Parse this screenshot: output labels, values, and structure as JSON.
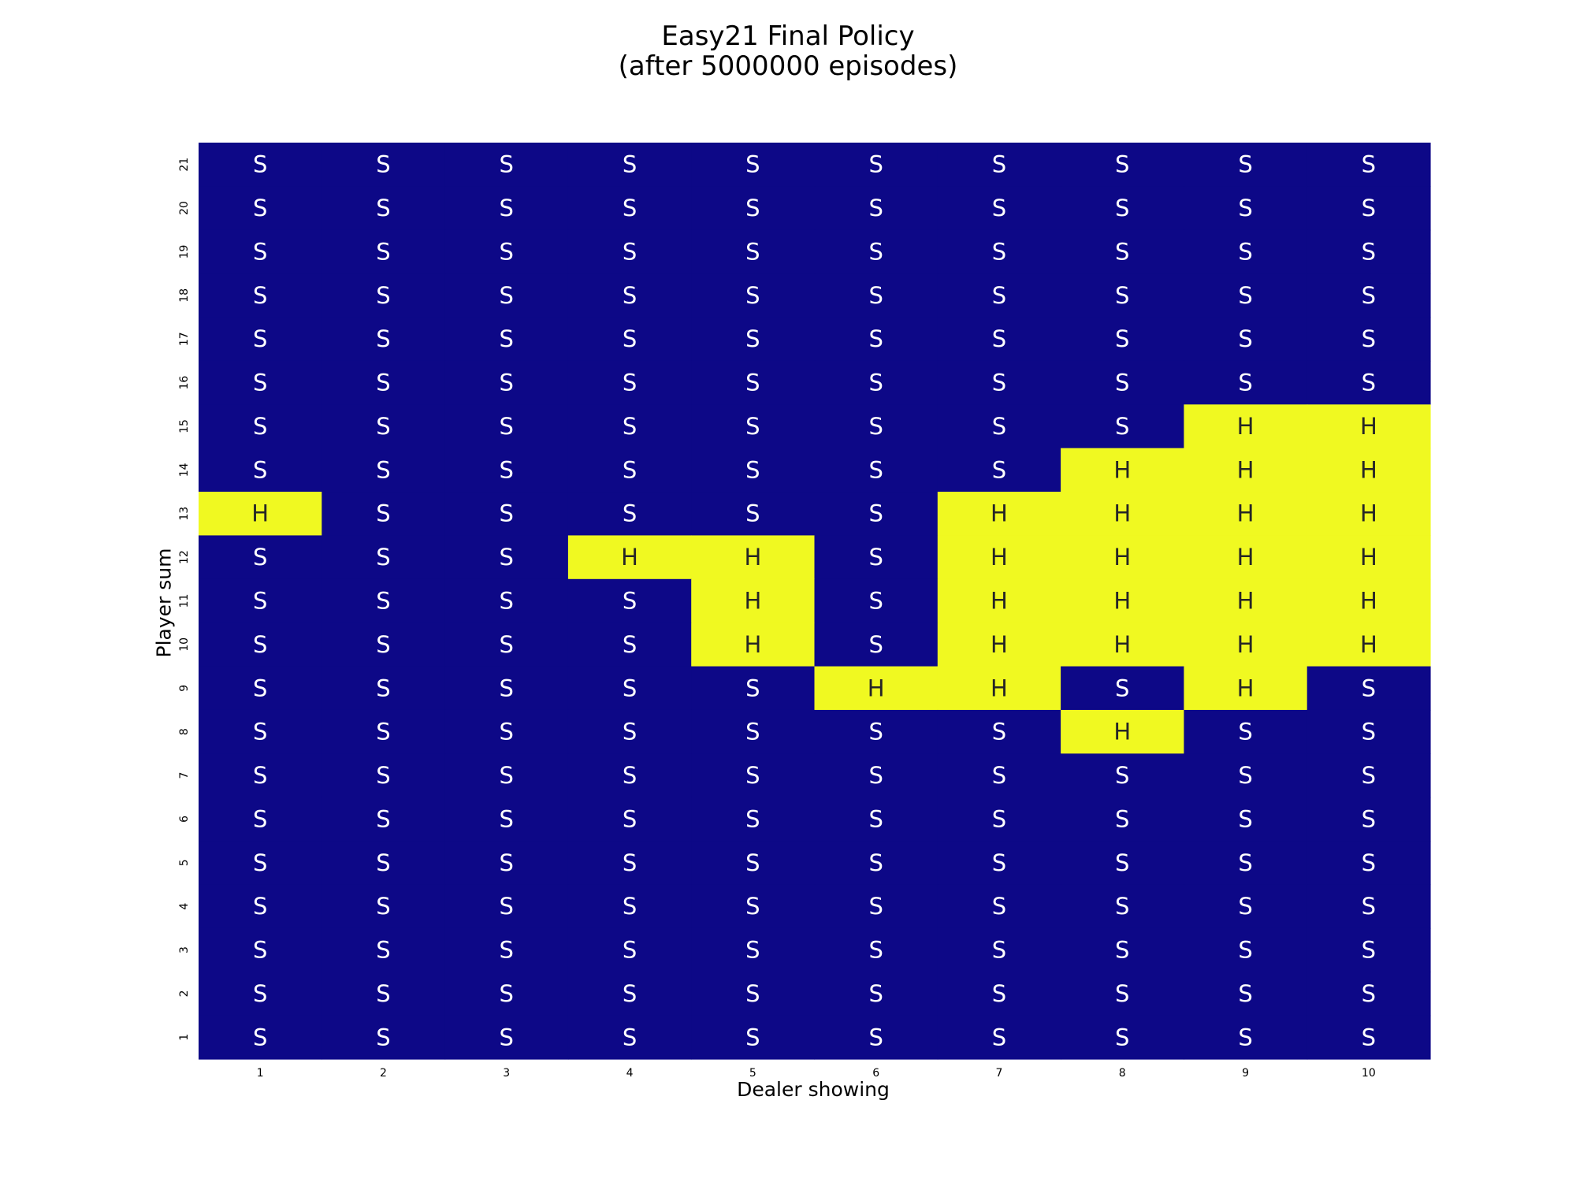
{
  "chart_data": {
    "type": "heatmap",
    "title": [
      "Easy21 Final Policy",
      "(after 5000000 episodes)"
    ],
    "xlabel": "Dealer showing",
    "ylabel": "Player sum",
    "x_ticks": [
      "1",
      "2",
      "3",
      "4",
      "5",
      "6",
      "7",
      "8",
      "9",
      "10"
    ],
    "y_ticks": [
      "21",
      "20",
      "19",
      "18",
      "17",
      "16",
      "15",
      "14",
      "13",
      "12",
      "11",
      "10",
      "9",
      "8",
      "7",
      "6",
      "5",
      "4",
      "3",
      "2",
      "1"
    ],
    "colors": {
      "H": "#f0f921",
      "S": "#0d0887",
      "H_text": "#262626",
      "S_text": "#ffffff"
    },
    "rows": [
      [
        "S",
        "S",
        "S",
        "S",
        "S",
        "S",
        "S",
        "S",
        "S",
        "S"
      ],
      [
        "S",
        "S",
        "S",
        "S",
        "S",
        "S",
        "S",
        "S",
        "S",
        "S"
      ],
      [
        "S",
        "S",
        "S",
        "S",
        "S",
        "S",
        "S",
        "S",
        "S",
        "S"
      ],
      [
        "S",
        "S",
        "S",
        "S",
        "S",
        "S",
        "S",
        "S",
        "S",
        "S"
      ],
      [
        "S",
        "S",
        "S",
        "S",
        "S",
        "S",
        "S",
        "S",
        "S",
        "S"
      ],
      [
        "S",
        "S",
        "S",
        "S",
        "S",
        "S",
        "S",
        "S",
        "S",
        "S"
      ],
      [
        "S",
        "S",
        "S",
        "S",
        "S",
        "S",
        "S",
        "S",
        "H",
        "H"
      ],
      [
        "S",
        "S",
        "S",
        "S",
        "S",
        "S",
        "S",
        "H",
        "H",
        "H"
      ],
      [
        "H",
        "S",
        "S",
        "S",
        "S",
        "S",
        "H",
        "H",
        "H",
        "H"
      ],
      [
        "S",
        "S",
        "S",
        "H",
        "H",
        "S",
        "H",
        "H",
        "H",
        "H"
      ],
      [
        "S",
        "S",
        "S",
        "S",
        "H",
        "S",
        "H",
        "H",
        "H",
        "H"
      ],
      [
        "S",
        "S",
        "S",
        "S",
        "H",
        "S",
        "H",
        "H",
        "H",
        "H"
      ],
      [
        "S",
        "S",
        "S",
        "S",
        "S",
        "H",
        "H",
        "S",
        "H",
        "S"
      ],
      [
        "S",
        "S",
        "S",
        "S",
        "S",
        "S",
        "S",
        "H",
        "S",
        "S"
      ],
      [
        "S",
        "S",
        "S",
        "S",
        "S",
        "S",
        "S",
        "S",
        "S",
        "S"
      ],
      [
        "S",
        "S",
        "S",
        "S",
        "S",
        "S",
        "S",
        "S",
        "S",
        "S"
      ],
      [
        "S",
        "S",
        "S",
        "S",
        "S",
        "S",
        "S",
        "S",
        "S",
        "S"
      ],
      [
        "S",
        "S",
        "S",
        "S",
        "S",
        "S",
        "S",
        "S",
        "S",
        "S"
      ],
      [
        "S",
        "S",
        "S",
        "S",
        "S",
        "S",
        "S",
        "S",
        "S",
        "S"
      ],
      [
        "S",
        "S",
        "S",
        "S",
        "S",
        "S",
        "S",
        "S",
        "S",
        "S"
      ],
      [
        "S",
        "S",
        "S",
        "S",
        "S",
        "S",
        "S",
        "S",
        "S",
        "S"
      ]
    ]
  }
}
